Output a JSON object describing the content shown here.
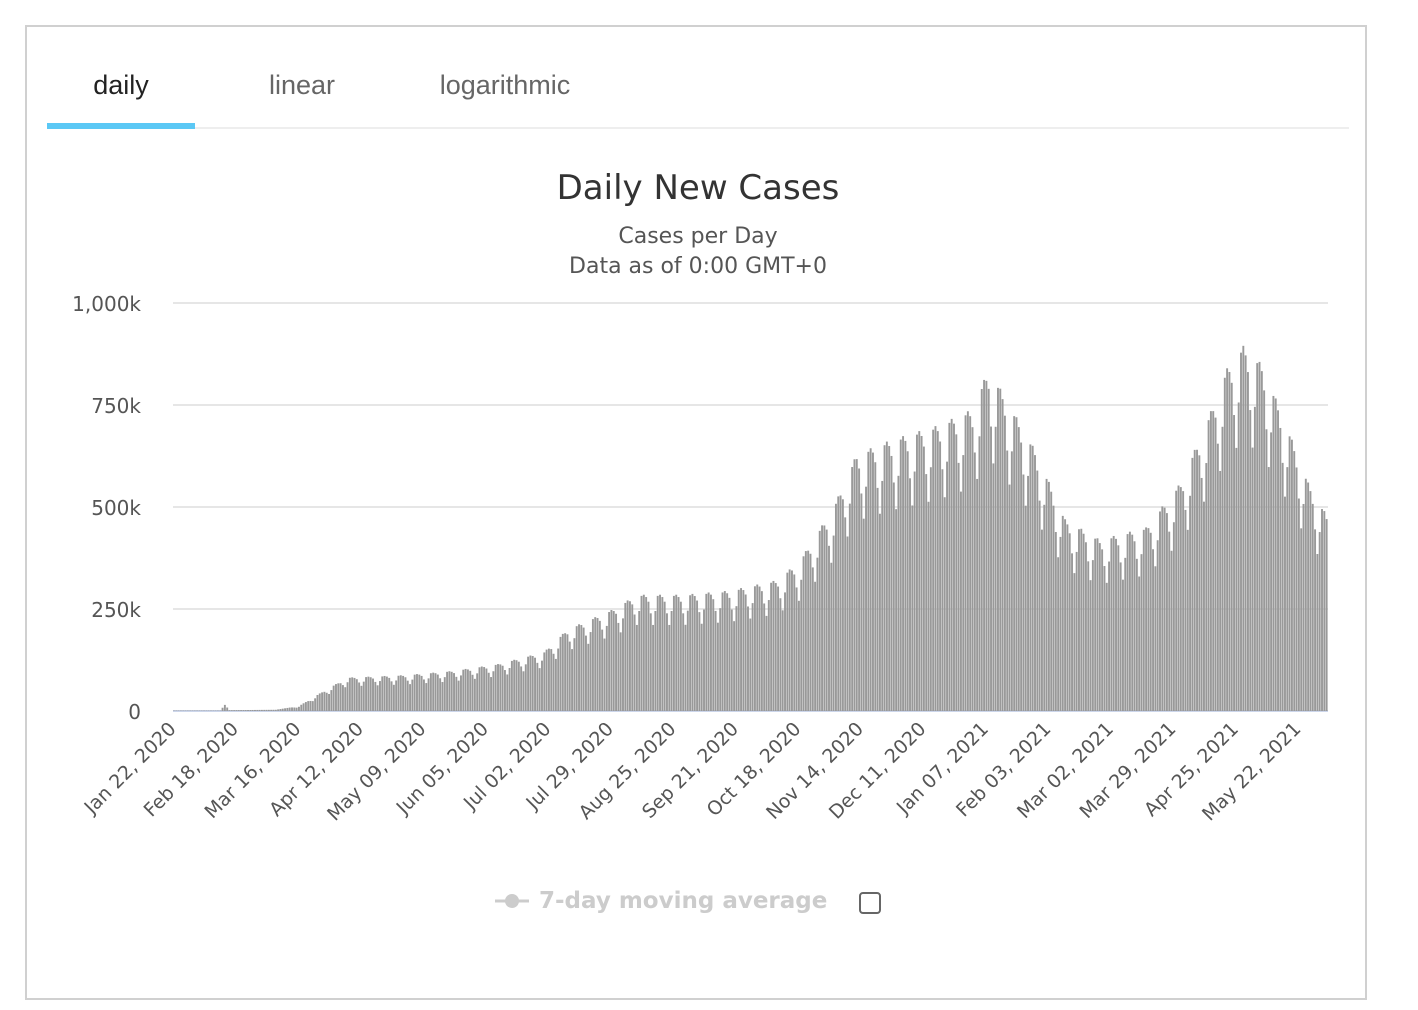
{
  "tabs": [
    {
      "label": "daily",
      "active": true
    },
    {
      "label": "linear",
      "active": false
    },
    {
      "label": "logarithmic",
      "active": false
    }
  ],
  "colors": {
    "accent": "#5bc8f5",
    "bar": "#999999",
    "grid": "#e6e6e6",
    "legend_inactive": "#cccccc"
  },
  "legend": {
    "label": "7-day moving average",
    "icon": "line-marker-icon",
    "checkbox_checked": false
  },
  "chart_data": {
    "type": "bar",
    "title": "Daily New Cases",
    "subtitle_lines": [
      "Cases per Day",
      "Data as of 0:00 GMT+0"
    ],
    "xlabel": "",
    "ylabel": "",
    "ylim": [
      0,
      1000000
    ],
    "y_ticks": [
      {
        "value": 0,
        "label": "0"
      },
      {
        "value": 250000,
        "label": "250k"
      },
      {
        "value": 500000,
        "label": "500k"
      },
      {
        "value": 750000,
        "label": "750k"
      },
      {
        "value": 1000000,
        "label": "1,000k"
      }
    ],
    "start_date": "Jan 22, 2020",
    "num_days": 499,
    "x_tick_interval_days": 27,
    "x_tick_labels": [
      "Jan 22, 2020",
      "Feb 18, 2020",
      "Mar 16, 2020",
      "Apr 12, 2020",
      "May 09, 2020",
      "Jun 05, 2020",
      "Jul 02, 2020",
      "Jul 29, 2020",
      "Aug 25, 2020",
      "Sep 21, 2020",
      "Oct 18, 2020",
      "Nov 14, 2020",
      "Dec 11, 2020",
      "Jan 07, 2021",
      "Feb 03, 2021",
      "Mar 02, 2021",
      "Mar 29, 2021",
      "Apr 25, 2021",
      "May 22, 2021"
    ],
    "trend_anchors_day_value": [
      [
        0,
        1000
      ],
      [
        20,
        1000
      ],
      [
        22,
        15000
      ],
      [
        24,
        2000
      ],
      [
        44,
        3000
      ],
      [
        54,
        12000
      ],
      [
        65,
        50000
      ],
      [
        75,
        82000
      ],
      [
        100,
        88000
      ],
      [
        120,
        98000
      ],
      [
        140,
        115000
      ],
      [
        160,
        145000
      ],
      [
        170,
        200000
      ],
      [
        190,
        250000
      ],
      [
        200,
        285000
      ],
      [
        220,
        285000
      ],
      [
        240,
        295000
      ],
      [
        260,
        320000
      ],
      [
        270,
        365000
      ],
      [
        285,
        500000
      ],
      [
        295,
        630000
      ],
      [
        310,
        665000
      ],
      [
        330,
        700000
      ],
      [
        345,
        740000
      ],
      [
        352,
        840000
      ],
      [
        360,
        760000
      ],
      [
        372,
        640000
      ],
      [
        385,
        470000
      ],
      [
        400,
        420000
      ],
      [
        420,
        450000
      ],
      [
        435,
        560000
      ],
      [
        447,
        720000
      ],
      [
        455,
        840000
      ],
      [
        462,
        895000
      ],
      [
        470,
        850000
      ],
      [
        480,
        710000
      ],
      [
        490,
        560000
      ],
      [
        498,
        480000
      ]
    ],
    "weekly_pattern": [
      1.0,
      0.98,
      0.94,
      0.84,
      0.74,
      0.86,
      0.99
    ],
    "grid": true,
    "legend_position": "bottom-center"
  }
}
